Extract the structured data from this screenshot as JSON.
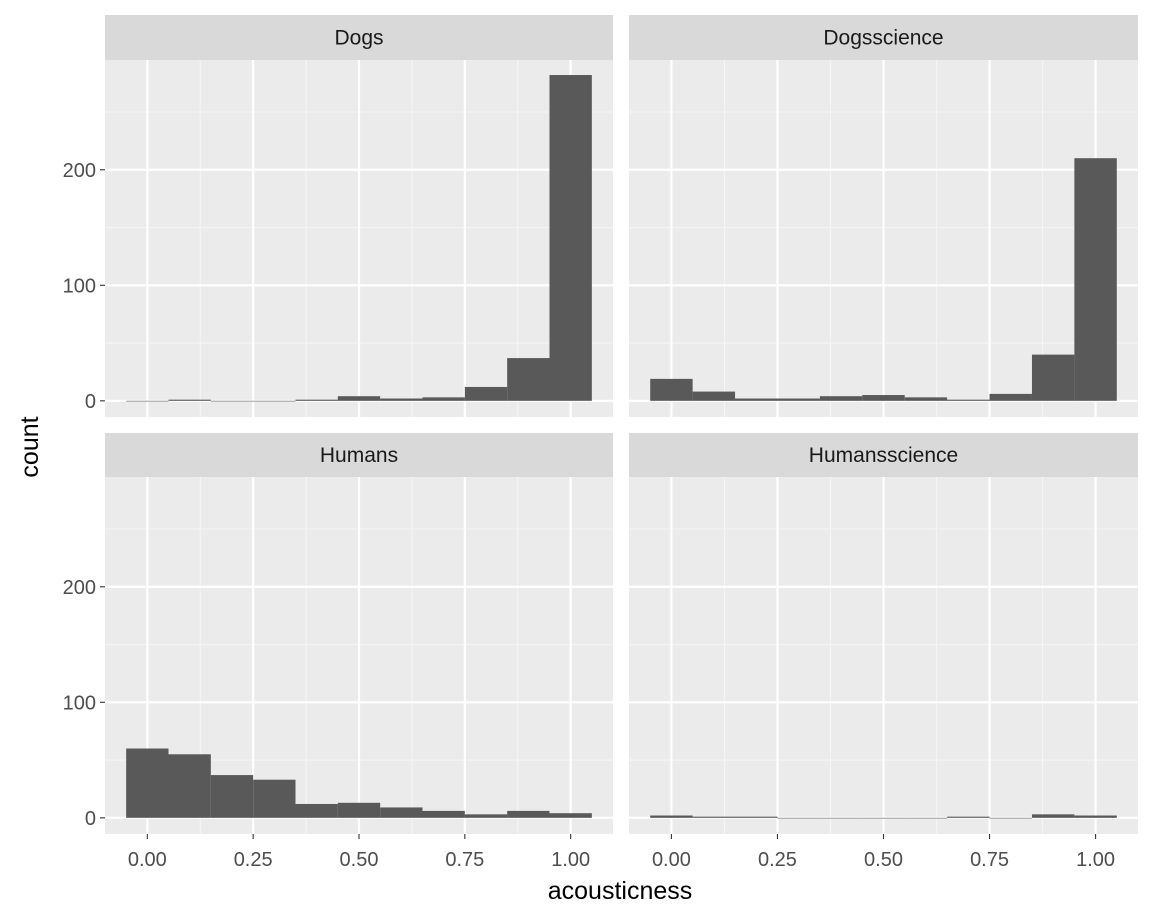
{
  "chart_data": {
    "type": "bar",
    "subtype": "faceted-histogram",
    "title": "",
    "xlabel": "acousticness",
    "ylabel": "count",
    "xlim": [
      -0.1,
      1.1
    ],
    "ylim": [
      -14,
      295
    ],
    "x_ticks": [
      0,
      0.25,
      0.5,
      0.75,
      1
    ],
    "x_tick_labels": [
      "0.00",
      "0.25",
      "0.50",
      "0.75",
      "1.00"
    ],
    "y_ticks": [
      0,
      100,
      200
    ],
    "y_tick_labels": [
      "0",
      "100",
      "200"
    ],
    "bins": [
      [
        -0.05,
        0.05
      ],
      [
        0.05,
        0.15
      ],
      [
        0.15,
        0.25
      ],
      [
        0.25,
        0.35
      ],
      [
        0.35,
        0.45
      ],
      [
        0.45,
        0.55
      ],
      [
        0.55,
        0.65
      ],
      [
        0.65,
        0.75
      ],
      [
        0.75,
        0.85
      ],
      [
        0.85,
        0.95
      ],
      [
        0.95,
        1.05
      ]
    ],
    "grid": true,
    "bar_color": "#595959",
    "panel_background": "#ebebeb",
    "strip_background": "#d9d9d9",
    "facets": [
      {
        "name": "Dogs",
        "values": [
          0,
          1,
          0,
          0,
          1,
          4,
          2,
          3,
          12,
          37,
          282
        ]
      },
      {
        "name": "Dogsscience",
        "values": [
          19,
          8,
          2,
          2,
          4,
          5,
          3,
          1,
          6,
          40,
          210
        ]
      },
      {
        "name": "Humans",
        "values": [
          60,
          55,
          37,
          33,
          12,
          13,
          9,
          6,
          3,
          6,
          4
        ]
      },
      {
        "name": "Humansscience",
        "values": [
          2,
          1,
          1,
          0,
          0,
          0,
          0,
          1,
          0,
          3,
          2
        ]
      }
    ]
  }
}
